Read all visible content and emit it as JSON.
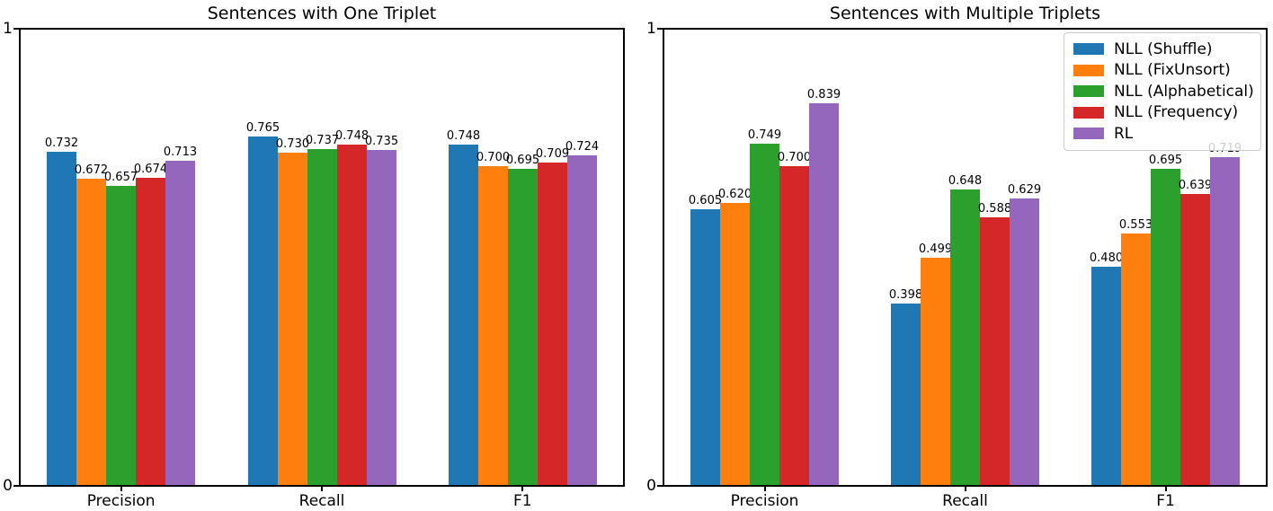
{
  "figure": {
    "background": "#ffffff",
    "text_color": "#000000",
    "axis_color": "#000000",
    "legend_border_color": "#cccccc"
  },
  "chart_data": [
    {
      "type": "bar",
      "title": "Sentences with One Triplet",
      "categories": [
        "Precision",
        "Recall",
        "F1"
      ],
      "series": [
        {
          "name": "NLL (Shuffle)",
          "color": "#1f77b4",
          "values": [
            0.732,
            0.765,
            0.748
          ]
        },
        {
          "name": "NLL (FixUnsort)",
          "color": "#ff7f0e",
          "values": [
            0.672,
            0.73,
            0.7
          ]
        },
        {
          "name": "NLL (Alphabetical)",
          "color": "#2ca02c",
          "values": [
            0.657,
            0.737,
            0.695
          ]
        },
        {
          "name": "NLL (Frequency)",
          "color": "#d62728",
          "values": [
            0.674,
            0.748,
            0.709
          ]
        },
        {
          "name": "RL",
          "color": "#9467bd",
          "values": [
            0.713,
            0.735,
            0.724
          ]
        }
      ],
      "xlabel": "",
      "ylabel": "",
      "ylim": [
        0,
        1
      ],
      "yticks": [
        {
          "value": 0,
          "label": "0"
        },
        {
          "value": 1,
          "label": "1"
        }
      ],
      "grid": false,
      "bar_labels_decimals": 3,
      "legend": {
        "show": false
      }
    },
    {
      "type": "bar",
      "title": "Sentences with Multiple Triplets",
      "categories": [
        "Precision",
        "Recall",
        "F1"
      ],
      "series": [
        {
          "name": "NLL (Shuffle)",
          "color": "#1f77b4",
          "values": [
            0.605,
            0.398,
            0.48
          ]
        },
        {
          "name": "NLL (FixUnsort)",
          "color": "#ff7f0e",
          "values": [
            0.62,
            0.499,
            0.553
          ]
        },
        {
          "name": "NLL (Alphabetical)",
          "color": "#2ca02c",
          "values": [
            0.749,
            0.648,
            0.695
          ]
        },
        {
          "name": "NLL (Frequency)",
          "color": "#d62728",
          "values": [
            0.7,
            0.588,
            0.639
          ]
        },
        {
          "name": "RL",
          "color": "#9467bd",
          "values": [
            0.839,
            0.629,
            0.719
          ]
        }
      ],
      "xlabel": "",
      "ylabel": "",
      "ylim": [
        0,
        1
      ],
      "yticks": [
        {
          "value": 0,
          "label": "0"
        },
        {
          "value": 1,
          "label": "1"
        }
      ],
      "grid": false,
      "bar_labels_decimals": 3,
      "legend": {
        "show": true,
        "position": "top-right",
        "entries": [
          "NLL (Shuffle)",
          "NLL (FixUnsort)",
          "NLL (Alphabetical)",
          "NLL (Frequency)",
          "RL"
        ]
      }
    }
  ]
}
